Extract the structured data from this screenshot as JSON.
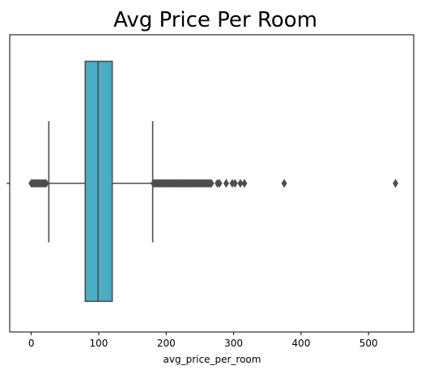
{
  "chart_data": {
    "type": "boxplot",
    "orientation": "horizontal",
    "title": "Avg Price Per Room",
    "xlabel": "avg_price_per_room",
    "ylabel": "",
    "xlim": [
      -32,
      567
    ],
    "xticks": [
      0,
      100,
      200,
      300,
      400,
      500
    ],
    "xtick_labels": [
      "0",
      "100",
      "200",
      "300",
      "400",
      "500"
    ],
    "grid": false,
    "box": {
      "whisker_low": 26,
      "q1": 80,
      "median": 99,
      "q3": 120,
      "whisker_high": 180,
      "color": "#4bacc6",
      "line_color": "#4d4d4d"
    },
    "outliers": [
      0,
      2,
      4,
      6,
      8,
      10,
      12,
      14,
      16,
      18,
      20,
      22,
      181,
      183,
      185,
      187,
      189,
      191,
      193,
      195,
      197,
      199,
      201,
      203,
      205,
      207,
      209,
      211,
      213,
      215,
      217,
      219,
      221,
      223,
      225,
      227,
      229,
      231,
      233,
      235,
      237,
      239,
      241,
      243,
      245,
      247,
      249,
      251,
      253,
      255,
      257,
      259,
      261,
      263,
      265,
      267,
      276,
      279,
      289,
      298,
      302,
      310,
      316,
      375,
      540
    ]
  }
}
